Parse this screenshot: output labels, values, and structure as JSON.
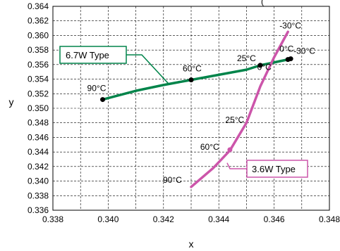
{
  "chart_data": {
    "type": "line",
    "title_fragment": "(",
    "xlabel": "x",
    "ylabel": "y",
    "xlim": [
      0.338,
      0.348
    ],
    "ylim": [
      0.336,
      0.364
    ],
    "x_ticks": [
      "0.338",
      "0.340",
      "0.342",
      "0.344",
      "0.346",
      "0.348"
    ],
    "y_ticks": [
      "0.336",
      "0.338",
      "0.340",
      "0.342",
      "0.344",
      "0.346",
      "0.348",
      "0.350",
      "0.352",
      "0.354",
      "0.356",
      "0.358",
      "0.360",
      "0.362",
      "0.364"
    ],
    "grid": true,
    "series": [
      {
        "name": "6.7W Type",
        "color": "#00844a",
        "x": [
          0.3398,
          0.341,
          0.342,
          0.343,
          0.344,
          0.345,
          0.3455,
          0.346,
          0.3465,
          0.3466
        ],
        "y": [
          0.3512,
          0.3524,
          0.3532,
          0.3539,
          0.3546,
          0.3553,
          0.3559,
          0.3563,
          0.3567,
          0.3568
        ],
        "markers": [
          {
            "x": 0.3398,
            "y": 0.3512,
            "label": "90°C"
          },
          {
            "x": 0.343,
            "y": 0.3539,
            "label": "60°C"
          },
          {
            "x": 0.3455,
            "y": 0.3559,
            "label": "25°C"
          },
          {
            "x": 0.3465,
            "y": 0.3567,
            "label": "0°C"
          },
          {
            "x": 0.3466,
            "y": 0.3568,
            "label": "-30°C"
          }
        ]
      },
      {
        "name": "3.6W Type",
        "color": "#cc55aa",
        "x": [
          0.343,
          0.3438,
          0.3444,
          0.345,
          0.3455,
          0.346,
          0.3465
        ],
        "y": [
          0.3392,
          0.3418,
          0.3442,
          0.348,
          0.353,
          0.357,
          0.3605
        ],
        "markers": [
          {
            "x": 0.3444,
            "y": 0.3443
          }
        ],
        "point_labels": [
          {
            "x": 0.343,
            "y": 0.3392,
            "label": "90°C"
          },
          {
            "x": 0.3444,
            "y": 0.3443,
            "label": "60°C"
          },
          {
            "x": 0.345,
            "y": 0.348,
            "label": "25°C"
          },
          {
            "x": 0.346,
            "y": 0.357,
            "label": "0°C"
          },
          {
            "x": 0.3465,
            "y": 0.3605,
            "label": "-30°C"
          }
        ]
      }
    ]
  }
}
